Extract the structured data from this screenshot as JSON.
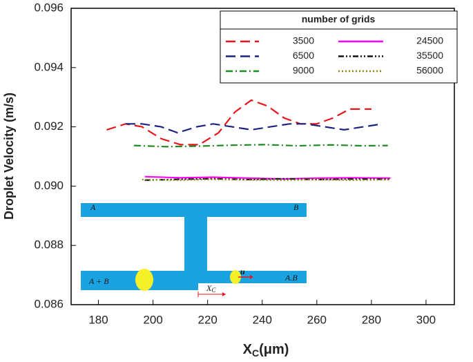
{
  "chart_data": {
    "type": "line",
    "x_label": "X",
    "x_label_sub": "C",
    "x_label_unit": "(μm)",
    "y_label": "Droplet Velocity (m/s)",
    "legend_title": "number of grids",
    "legend": "upper right",
    "xlim": [
      170,
      310
    ],
    "xticks": [
      180,
      200,
      220,
      240,
      260,
      280,
      300
    ],
    "ylim": [
      0.086,
      0.096
    ],
    "yticks": [
      0.086,
      0.088,
      {
        "value": 0.09,
        "label": "0.090"
      },
      0.092,
      0.094,
      0.096
    ],
    "series": [
      {
        "name": "3500",
        "color": "#e8141c",
        "dash": "14,7",
        "x": [
          183,
          190,
          196,
          203,
          210,
          217,
          224,
          230,
          236,
          242,
          248,
          254,
          260,
          266,
          272,
          280
        ],
        "values": [
          0.0919,
          0.0921,
          0.092,
          0.0916,
          0.0914,
          0.0914,
          0.0918,
          0.0925,
          0.0929,
          0.0927,
          0.0923,
          0.0921,
          0.0921,
          0.0923,
          0.0926,
          0.0926
        ]
      },
      {
        "name": "6500",
        "color": "#1a237e",
        "dash": "14,7",
        "x": [
          190,
          196,
          203,
          209,
          216,
          222,
          229,
          236,
          243,
          250,
          256,
          263,
          270,
          277,
          284
        ],
        "values": [
          0.0921,
          0.0921,
          0.092,
          0.0918,
          0.092,
          0.0921,
          0.092,
          0.0919,
          0.092,
          0.0921,
          0.0921,
          0.092,
          0.0919,
          0.092,
          0.0921
        ]
      },
      {
        "name": "9000",
        "color": "#1f8a1f",
        "dash": "10,4,2,4",
        "x": [
          193,
          205,
          217,
          229,
          241,
          253,
          265,
          277,
          286
        ],
        "values": [
          0.09137,
          0.09133,
          0.09135,
          0.09138,
          0.0914,
          0.09136,
          0.09139,
          0.09136,
          0.09137
        ]
      },
      {
        "name": "24500",
        "color": "#ff00ff",
        "dash": "none",
        "x": [
          197,
          210,
          222,
          235,
          248,
          260,
          273,
          287
        ],
        "values": [
          0.09032,
          0.09028,
          0.0903,
          0.09027,
          0.09024,
          0.09027,
          0.09028,
          0.09027
        ]
      },
      {
        "name": "35500",
        "color": "#111111",
        "dash": "8,3,2,3,2,3",
        "x": [
          197,
          210,
          222,
          235,
          248,
          260,
          273,
          287
        ],
        "values": [
          0.0902,
          0.09023,
          0.09025,
          0.09022,
          0.09025,
          0.09022,
          0.09024,
          0.09023
        ]
      },
      {
        "name": "56000",
        "color": "#8b8b00",
        "dash": "2,3",
        "x": [
          196,
          209,
          222,
          235,
          248,
          260,
          273,
          287
        ],
        "values": [
          0.09022,
          0.0902,
          0.09023,
          0.09021,
          0.0902,
          0.09022,
          0.0902,
          0.09022
        ]
      }
    ],
    "inset_labels": [
      "A",
      "B",
      "A + B",
      "A.B",
      "u",
      "X",
      "C"
    ]
  }
}
